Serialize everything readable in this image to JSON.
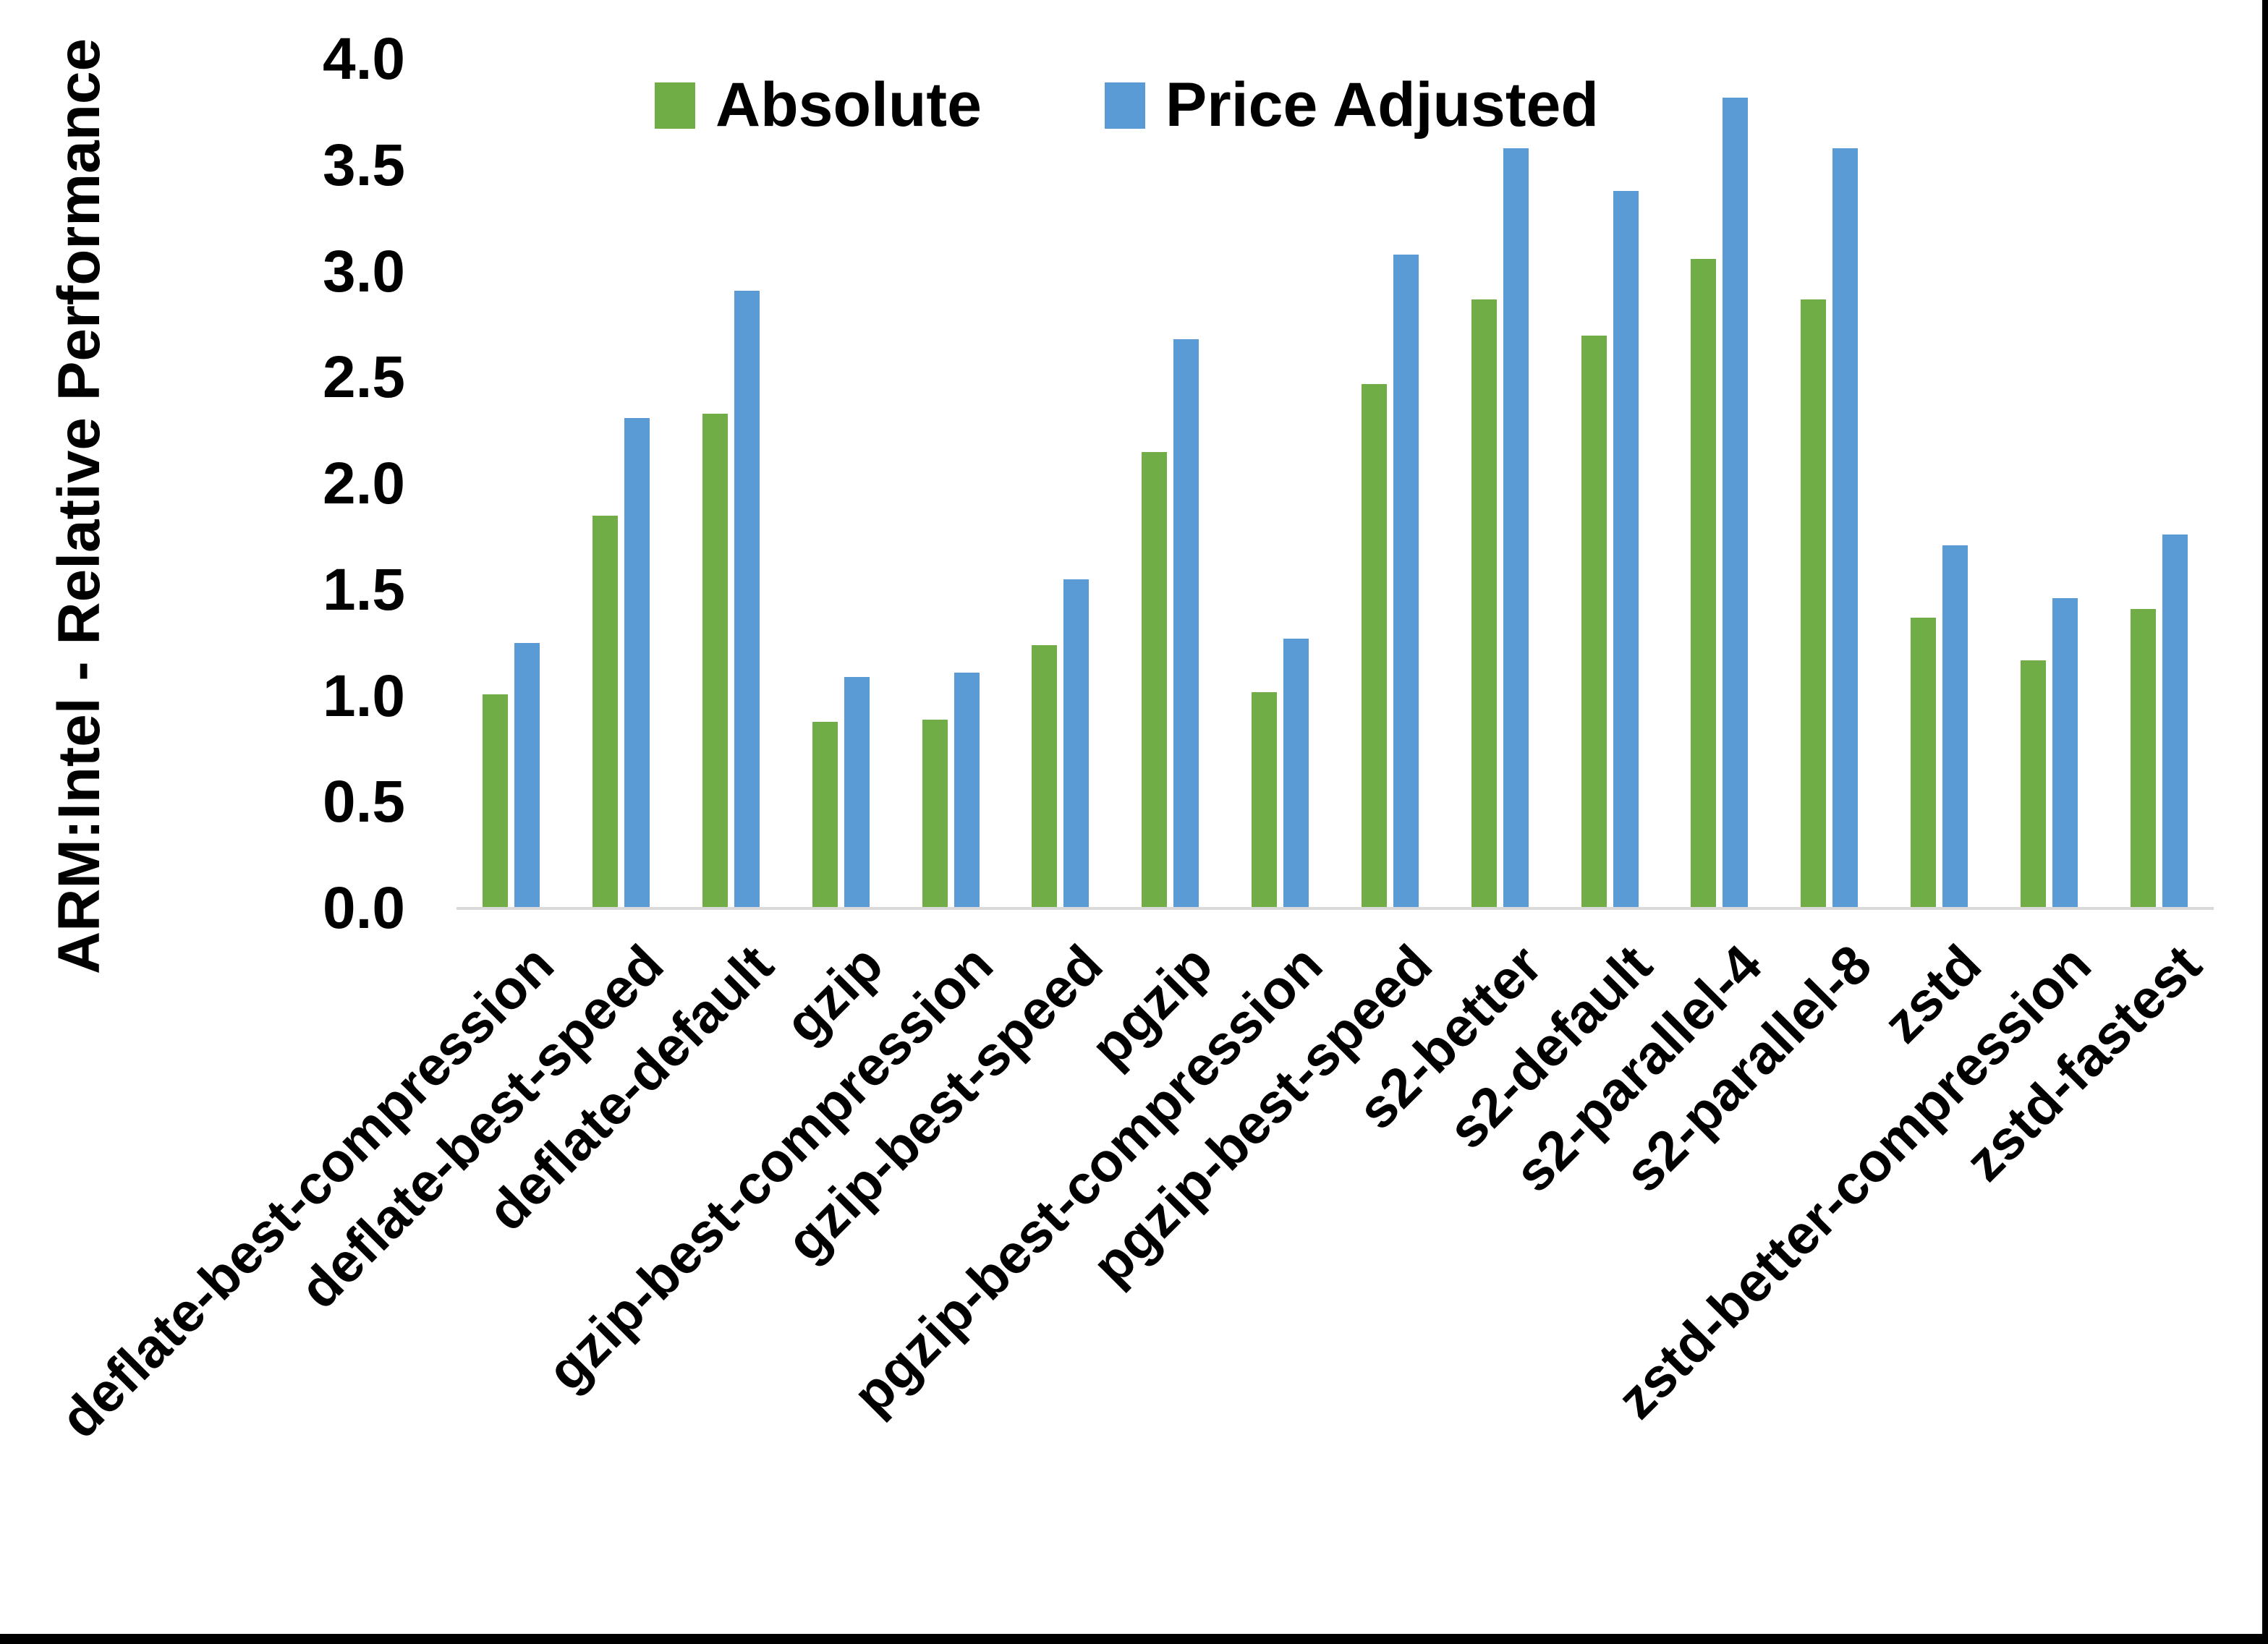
{
  "figure": {
    "background": "#ffffff",
    "axis_line_color": "#d9d9d9",
    "border_color": "#000000"
  },
  "chart_data": {
    "type": "bar",
    "title": "",
    "xlabel": "",
    "ylabel": "ARM:Intel - Relative Performance",
    "ylim": [
      0,
      4.0
    ],
    "ytick_step": 0.5,
    "yticks": [
      "0.0",
      "0.5",
      "1.0",
      "1.5",
      "2.0",
      "2.5",
      "3.0",
      "3.5",
      "4.0"
    ],
    "grid": false,
    "legend_position": "top-center",
    "categories": [
      "deflate-best-compression",
      "deflate-best-speed",
      "deflate-default",
      "gzip",
      "gzip-best-compression",
      "gzip-best-speed",
      "pgzip",
      "pgzip-best-compression",
      "pgzip-best-speed",
      "s2-better",
      "s2-default",
      "s2-parallel-4",
      "s2-parallel-8",
      "zstd",
      "zstd-better-compression",
      "zstd-fastest"
    ],
    "series": [
      {
        "name": "Absolute",
        "color": "#70AD47",
        "values": [
          1.01,
          1.85,
          2.33,
          0.88,
          0.89,
          1.24,
          2.15,
          1.02,
          2.47,
          2.87,
          2.7,
          3.06,
          2.87,
          1.37,
          1.17,
          1.41
        ]
      },
      {
        "name": "Price Adjusted",
        "color": "#5B9BD5",
        "values": [
          1.25,
          2.31,
          2.91,
          1.09,
          1.11,
          1.55,
          2.68,
          1.27,
          3.08,
          3.58,
          3.38,
          3.82,
          3.58,
          1.71,
          1.46,
          1.76
        ]
      }
    ]
  }
}
